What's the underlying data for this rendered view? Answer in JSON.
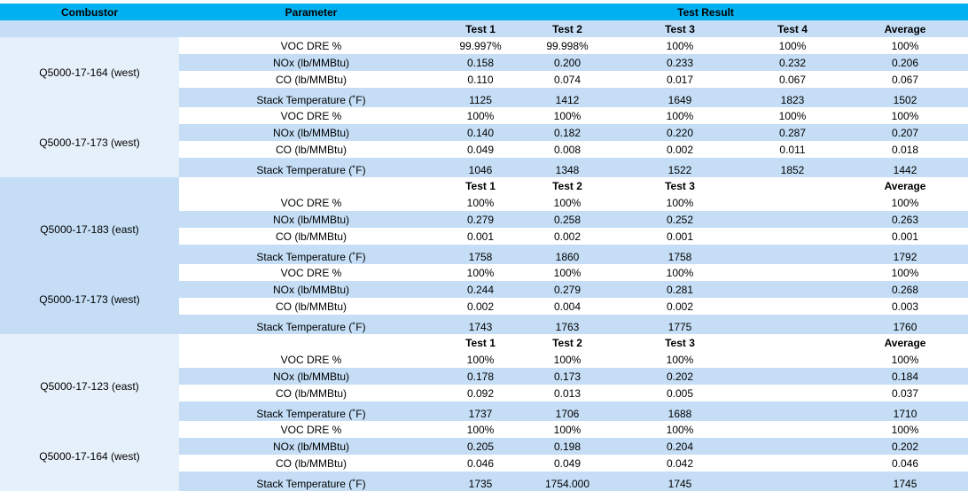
{
  "header": {
    "combustor": "Combustor",
    "parameter": "Parameter",
    "test_result": "Test Result"
  },
  "test_labels_4": [
    "Test 1",
    "Test 2",
    "Test 3",
    "Test 4",
    "Average"
  ],
  "test_labels_3": [
    "Test 1",
    "Test 2",
    "Test 3",
    "",
    "Average"
  ],
  "params": {
    "voc": "VOC DRE %",
    "nox": "NOx (lb/MMBtu)",
    "co": "CO (lb/MMBtu)",
    "stack": "Stack Temperature (˚F)"
  },
  "groups": [
    {
      "units": [
        {
          "name": "Q5000-17-164  (west)",
          "rows": [
            [
              "99.997%",
              "99.998%",
              "100%",
              "100%",
              "100%"
            ],
            [
              "0.158",
              "0.200",
              "0.233",
              "0.232",
              "0.206"
            ],
            [
              "0.110",
              "0.074",
              "0.017",
              "0.067",
              "0.067"
            ],
            [
              "1125",
              "1412",
              "1649",
              "1823",
              "1502"
            ]
          ]
        },
        {
          "name": "Q5000-17-173  (west)",
          "rows": [
            [
              "100%",
              "100%",
              "100%",
              "100%",
              "100%"
            ],
            [
              "0.140",
              "0.182",
              "0.220",
              "0.287",
              "0.207"
            ],
            [
              "0.049",
              "0.008",
              "0.002",
              "0.011",
              "0.018"
            ],
            [
              "1046",
              "1348",
              "1522",
              "1852",
              "1442"
            ]
          ]
        }
      ]
    },
    {
      "units": [
        {
          "name": "Q5000-17-183  (east)",
          "rows": [
            [
              "100%",
              "100%",
              "100%",
              "",
              "100%"
            ],
            [
              "0.279",
              "0.258",
              "0.252",
              "",
              "0.263"
            ],
            [
              "0.001",
              "0.002",
              "0.001",
              "",
              "0.001"
            ],
            [
              "1758",
              "1860",
              "1758",
              "",
              "1792"
            ]
          ]
        },
        {
          "name": "Q5000-17-173  (west)",
          "rows": [
            [
              "100%",
              "100%",
              "100%",
              "",
              "100%"
            ],
            [
              "0.244",
              "0.279",
              "0.281",
              "",
              "0.268"
            ],
            [
              "0.002",
              "0.004",
              "0.002",
              "",
              "0.003"
            ],
            [
              "1743",
              "1763",
              "1775",
              "",
              "1760"
            ]
          ]
        }
      ]
    },
    {
      "units": [
        {
          "name": "Q5000-17-123  (east)",
          "rows": [
            [
              "100%",
              "100%",
              "100%",
              "",
              "100%"
            ],
            [
              "0.178",
              "0.173",
              "0.202",
              "",
              "0.184"
            ],
            [
              "0.092",
              "0.013",
              "0.005",
              "",
              "0.037"
            ],
            [
              "1737",
              "1706",
              "1688",
              "",
              "1710"
            ]
          ]
        },
        {
          "name": "Q5000-17-164  (west)",
          "rows": [
            [
              "100%",
              "100%",
              "100%",
              "",
              "100%"
            ],
            [
              "0.205",
              "0.198",
              "0.204",
              "",
              "0.202"
            ],
            [
              "0.046",
              "0.049",
              "0.042",
              "",
              "0.046"
            ],
            [
              "1735",
              "1754.000",
              "1745",
              "",
              "1745"
            ]
          ]
        }
      ]
    }
  ]
}
